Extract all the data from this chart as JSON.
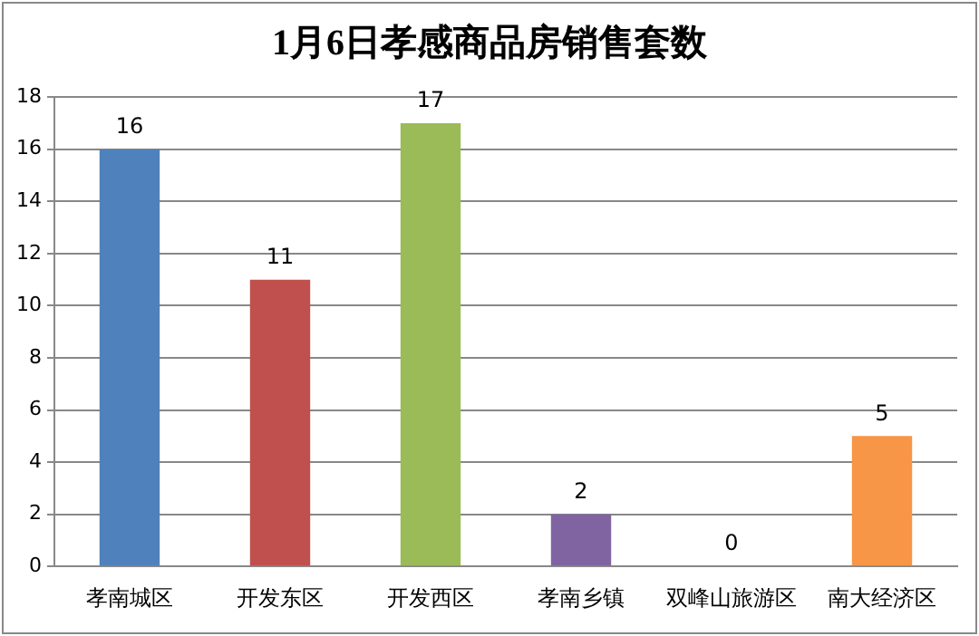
{
  "chart_data": {
    "type": "bar",
    "title": "1月6日孝感商品房销售套数",
    "categories": [
      "孝南城区",
      "开发东区",
      "开发西区",
      "孝南乡镇",
      "双峰山旅游区",
      "南大经济区"
    ],
    "values": [
      16,
      11,
      17,
      2,
      0,
      5
    ],
    "colors": [
      "#4f81bd",
      "#c0504d",
      "#9bbb59",
      "#8064a2",
      "#4bacc6",
      "#f79646"
    ],
    "ylim": [
      0,
      18
    ],
    "yticks": [
      0,
      2,
      4,
      6,
      8,
      10,
      12,
      14,
      16,
      18
    ],
    "grid": "y",
    "legend": false,
    "data_labels": true
  }
}
